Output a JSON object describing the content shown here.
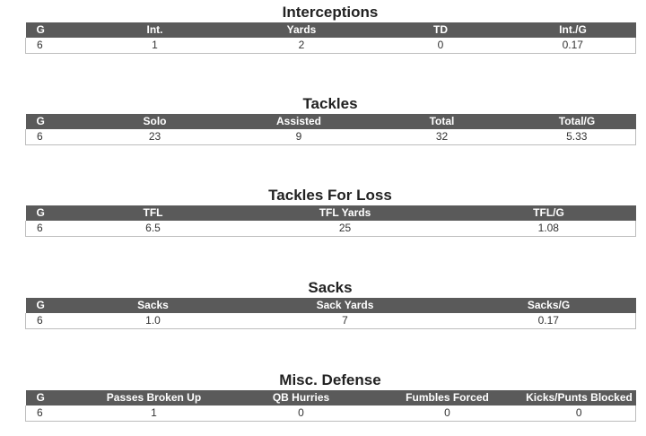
{
  "sections": [
    {
      "title": "Interceptions",
      "headers": [
        "G",
        "Int.",
        "Yards",
        "TD",
        "Int./G"
      ],
      "row": [
        "6",
        "1",
        "2",
        "0",
        "0.17"
      ]
    },
    {
      "title": "Tackles",
      "headers": [
        "G",
        "Solo",
        "Assisted",
        "Total",
        "Total/G"
      ],
      "row": [
        "6",
        "23",
        "9",
        "32",
        "5.33"
      ]
    },
    {
      "title": "Tackles For Loss",
      "headers": [
        "G",
        "TFL",
        "TFL Yards",
        "TFL/G"
      ],
      "row": [
        "6",
        "6.5",
        "25",
        "1.08"
      ]
    },
    {
      "title": "Sacks",
      "headers": [
        "G",
        "Sacks",
        "Sack Yards",
        "Sacks/G"
      ],
      "row": [
        "6",
        "1.0",
        "7",
        "0.17"
      ]
    },
    {
      "title": "Misc. Defense",
      "headers": [
        "G",
        "Passes Broken Up",
        "QB Hurries",
        "Fumbles Forced",
        "Kicks/Punts Blocked"
      ],
      "row": [
        "6",
        "1",
        "0",
        "0",
        "0"
      ]
    }
  ]
}
